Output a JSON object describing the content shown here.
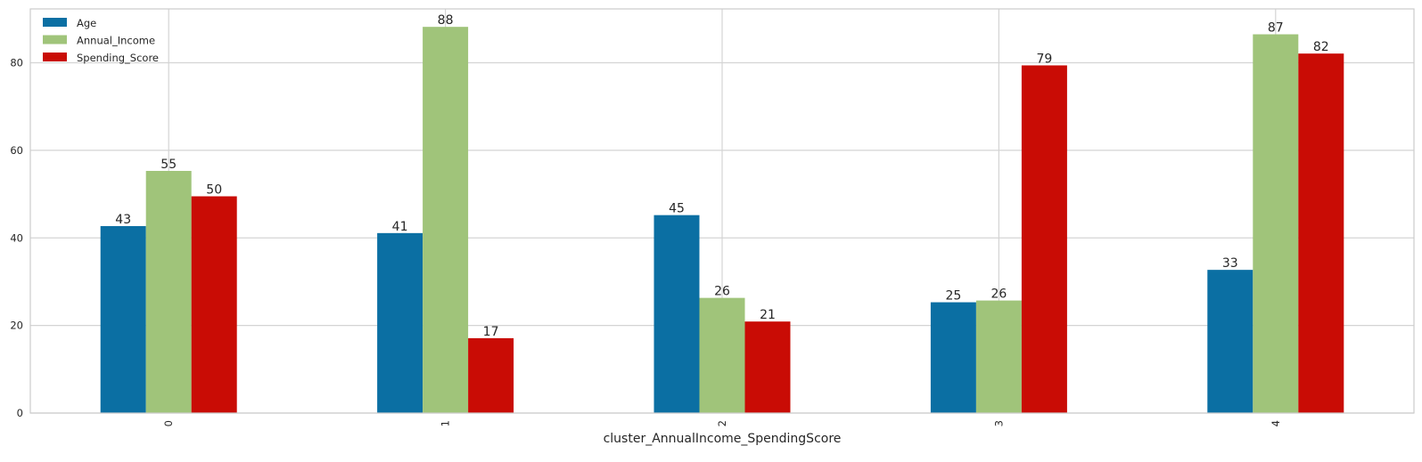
{
  "chart_data": {
    "type": "bar",
    "title": "",
    "xlabel": "cluster_AnnualIncome_SpendingScore",
    "ylabel": "",
    "categories": [
      "0",
      "1",
      "2",
      "3",
      "4"
    ],
    "ylim": [
      0,
      92.3
    ],
    "yticks": [
      0,
      20,
      40,
      60,
      80
    ],
    "grid": true,
    "legend_position": "top-left",
    "series": [
      {
        "name": "Age",
        "color": "#0b6fa3",
        "values": [
          42.7,
          41.1,
          45.2,
          25.3,
          32.7
        ],
        "labels": [
          "43",
          "41",
          "45",
          "25",
          "33"
        ]
      },
      {
        "name": "Annual_Income",
        "color": "#a0c47a",
        "values": [
          55.3,
          88.2,
          26.3,
          25.7,
          86.5
        ],
        "labels": [
          "55",
          "88",
          "26",
          "26",
          "87"
        ]
      },
      {
        "name": "Spending_Score",
        "color": "#c90c05",
        "values": [
          49.5,
          17.1,
          20.9,
          79.4,
          82.1
        ],
        "labels": [
          "50",
          "17",
          "21",
          "79",
          "82"
        ]
      }
    ]
  }
}
